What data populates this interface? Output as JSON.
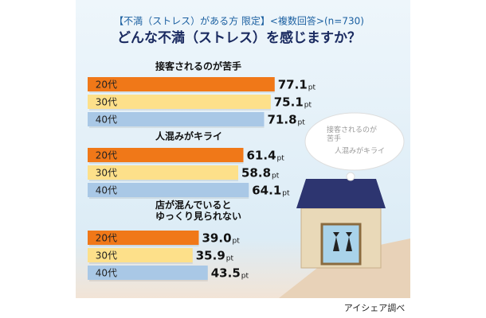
{
  "chart_data": {
    "type": "grouped_hbar",
    "subtitle": "【不満（ストレス）がある方 限定】<複数回答>(n=730)",
    "title": "どんな不満（ストレス）を感じますか？",
    "categories": [
      "接客されるのが苦手",
      "人混みがキライ",
      "店が混んでいると\nゆっくり見られない"
    ],
    "series": [
      {
        "name": "20代",
        "color": "#f07818",
        "values": [
          77.1,
          61.4,
          39.0
        ],
        "value_labels": [
          "77.1",
          "61.4",
          "39.0"
        ]
      },
      {
        "name": "30代",
        "color": "#fde08a",
        "values": [
          75.1,
          58.8,
          35.9
        ],
        "value_labels": [
          "75.1",
          "58.8",
          "35.9"
        ]
      },
      {
        "name": "40代",
        "color": "#a9c8e6",
        "values": [
          71.8,
          64.1,
          43.5
        ],
        "value_labels": [
          "71.8",
          "64.1",
          "43.5"
        ]
      }
    ],
    "unit": "pt",
    "xlim": [
      0,
      100
    ],
    "bubble": [
      "接客されるのが\n苦手",
      "人混みがキライ"
    ],
    "source": "アイシェア調べ"
  }
}
